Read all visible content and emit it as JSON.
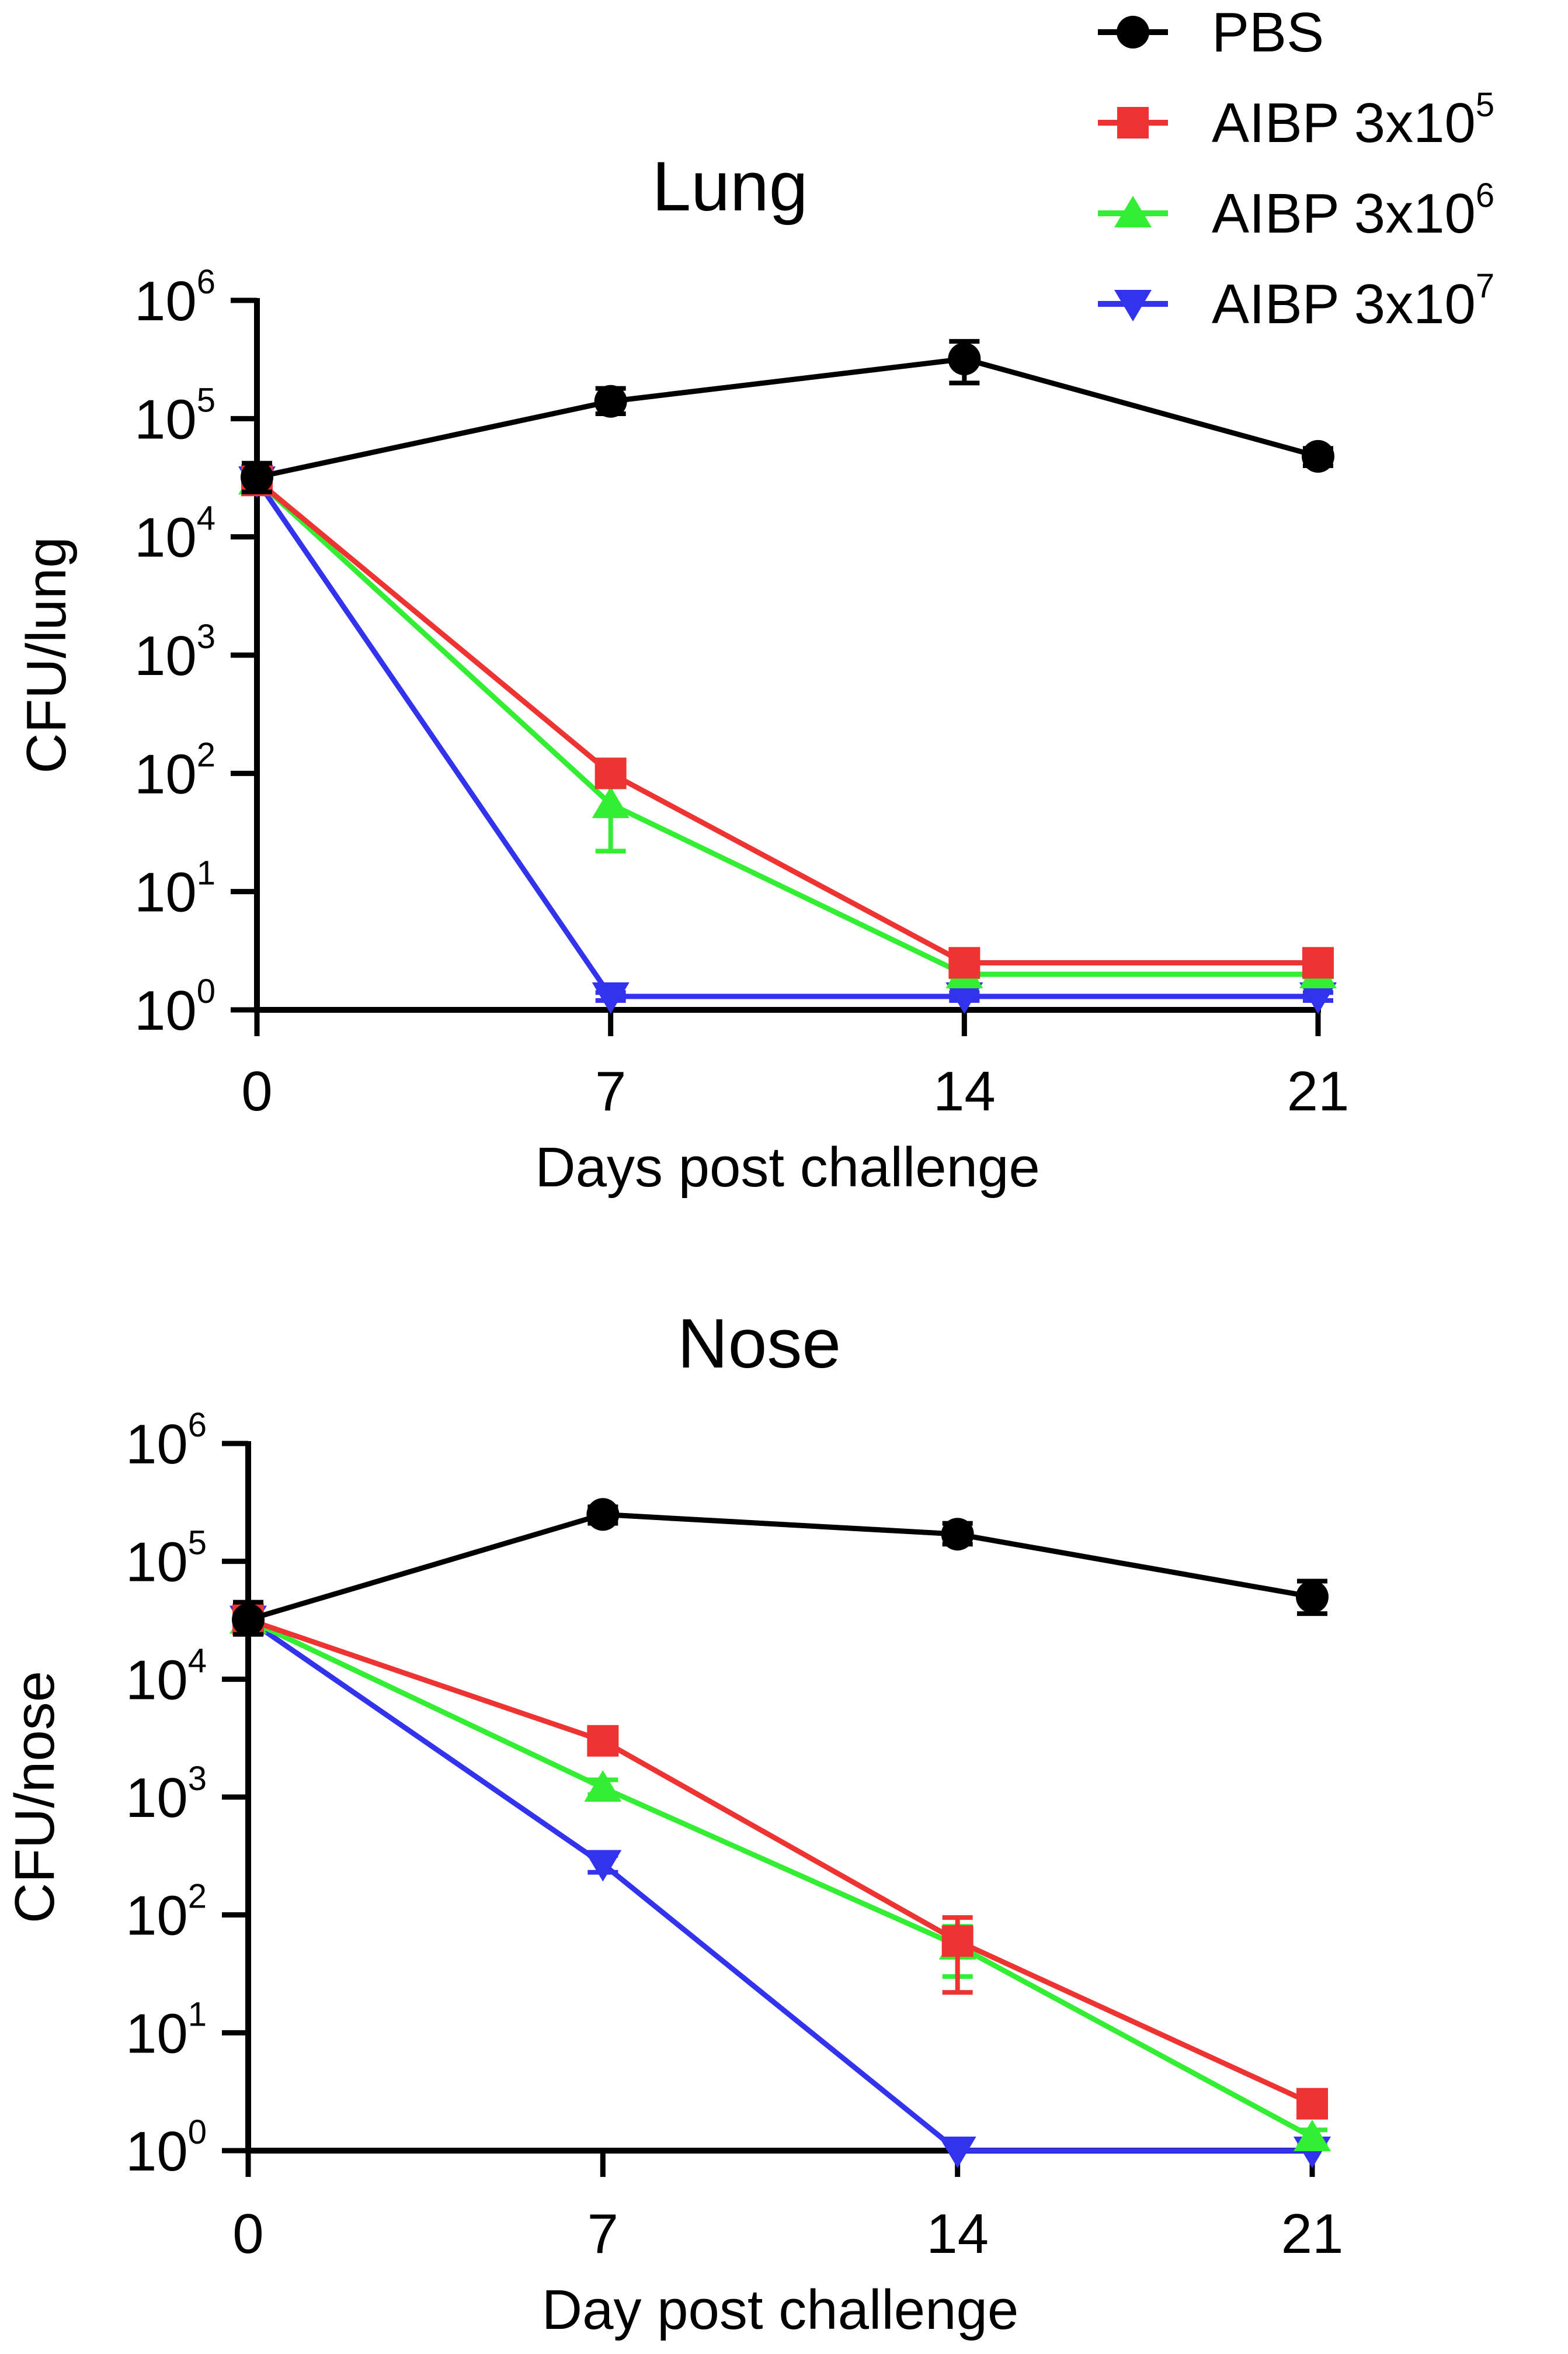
{
  "legend": [
    {
      "name": "PBS",
      "color": "#000000",
      "marker": "circle"
    },
    {
      "name": "AIBP 3x10",
      "exp": "5",
      "color": "#ee3333",
      "marker": "square"
    },
    {
      "name": "AIBP 3x10",
      "exp": "6",
      "color": "#33ee33",
      "marker": "triangle-up"
    },
    {
      "name": "AIBP 3x10",
      "exp": "7",
      "color": "#3333ee",
      "marker": "triangle-down"
    }
  ],
  "chart_data": [
    {
      "type": "line",
      "title": "Lung",
      "xlabel": "Days post challenge",
      "ylabel": "CFU/lung",
      "yscale": "log10",
      "ylim": [
        1,
        1000000
      ],
      "x": [
        0,
        7,
        14,
        21
      ],
      "x_tick_labels": [
        "0",
        "7",
        "14",
        "21"
      ],
      "y_tick_labels": [
        {
          "base": "10",
          "exp": "0"
        },
        {
          "base": "10",
          "exp": "1"
        },
        {
          "base": "10",
          "exp": "2"
        },
        {
          "base": "10",
          "exp": "3"
        },
        {
          "base": "10",
          "exp": "4"
        },
        {
          "base": "10",
          "exp": "5"
        },
        {
          "base": "10",
          "exp": "6"
        }
      ],
      "series": [
        {
          "name": "PBS",
          "values": [
            32000,
            140000,
            320000,
            48000
          ],
          "err_low": [
            24000,
            110000,
            200000,
            40000
          ],
          "err_high": [
            42000,
            180000,
            450000,
            56000
          ]
        },
        {
          "name": "AIBP 3x10^5",
          "values": [
            30000,
            100,
            2.5,
            2.5
          ],
          "err_low": [
            24000,
            80,
            2.2,
            2.2
          ],
          "err_high": [
            36000,
            120,
            2.8,
            2.8
          ]
        },
        {
          "name": "AIBP 3x10^6",
          "values": [
            30000,
            55,
            2.0,
            2.0
          ],
          "err_low": [
            24000,
            22,
            1.9,
            1.9
          ],
          "err_high": [
            36000,
            90,
            2.1,
            2.1
          ]
        },
        {
          "name": "AIBP 3x10^7",
          "values": [
            30000,
            1.3,
            1.3,
            1.3
          ],
          "err_low": [
            24000,
            1.2,
            1.2,
            1.2
          ],
          "err_high": [
            36000,
            1.4,
            1.4,
            1.4
          ]
        }
      ]
    },
    {
      "type": "line",
      "title": "Nose",
      "xlabel": "Day post challenge",
      "ylabel": "CFU/nose",
      "yscale": "log10",
      "ylim": [
        1,
        1000000
      ],
      "x": [
        0,
        7,
        14,
        21
      ],
      "x_tick_labels": [
        "0",
        "7",
        "14",
        "21"
      ],
      "y_tick_labels": [
        {
          "base": "10",
          "exp": "0"
        },
        {
          "base": "10",
          "exp": "1"
        },
        {
          "base": "10",
          "exp": "2"
        },
        {
          "base": "10",
          "exp": "3"
        },
        {
          "base": "10",
          "exp": "4"
        },
        {
          "base": "10",
          "exp": "5"
        },
        {
          "base": "10",
          "exp": "6"
        }
      ],
      "series": [
        {
          "name": "PBS",
          "values": [
            32000,
            250000,
            170000,
            50000
          ],
          "err_low": [
            24000,
            210000,
            140000,
            36000
          ],
          "err_high": [
            45000,
            290000,
            210000,
            68000
          ]
        },
        {
          "name": "AIBP 3x10^5",
          "values": [
            32000,
            3000,
            60,
            2.5
          ],
          "err_low": [
            25000,
            2500,
            22,
            2.2
          ],
          "err_high": [
            40000,
            3600,
            95,
            2.8
          ]
        },
        {
          "name": "AIBP 3x10^6",
          "values": [
            32000,
            1200,
            55,
            1.3
          ],
          "err_low": [
            25000,
            1050,
            30,
            1.1
          ],
          "err_high": [
            40000,
            1400,
            80,
            1.5
          ]
        },
        {
          "name": "AIBP 3x10^7",
          "values": [
            32000,
            270,
            1.0,
            1.0
          ],
          "err_low": [
            25000,
            230,
            1.0,
            1.0
          ],
          "err_high": [
            40000,
            320,
            1.0,
            1.0
          ]
        }
      ]
    }
  ]
}
